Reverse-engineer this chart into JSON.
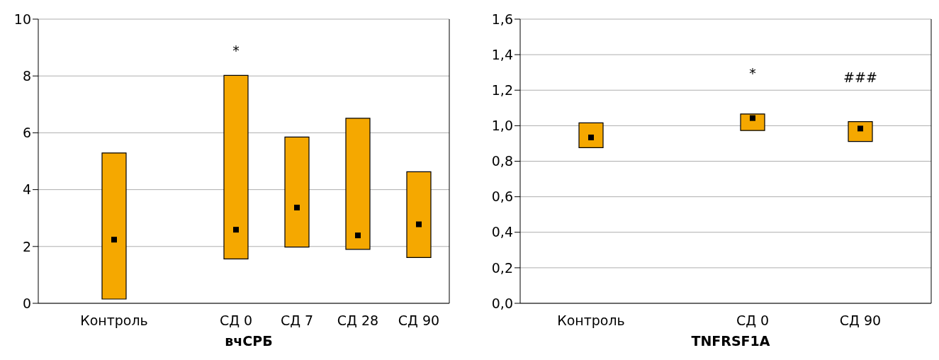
{
  "chart_data": [
    {
      "type": "bar",
      "xlabel": "вчСРБ",
      "categories": [
        "Контроль",
        null,
        "СД 0",
        "СД 7",
        "СД 28",
        "СД 90"
      ],
      "series": [
        {
          "type": "bar",
          "color": "#f5a800",
          "base": [
            0.15,
            null,
            1.56,
            1.98,
            1.9,
            1.61
          ],
          "values": [
            5.14,
            null,
            6.46,
            3.87,
            4.61,
            3.02
          ]
        },
        {
          "type": "scatter",
          "color": "#000000",
          "marker": "square",
          "values": [
            2.24,
            null,
            2.59,
            3.37,
            2.39,
            2.78
          ]
        }
      ],
      "ylim": [
        0,
        10
      ],
      "yticks": [
        0,
        2,
        4,
        6,
        8,
        10
      ],
      "grid": "y",
      "legend": false,
      "annotations": [
        "*"
      ]
    },
    {
      "type": "bar",
      "xlabel": "TNFRSF1A",
      "categories": [
        "Контроль",
        null,
        null,
        "СД 0",
        null,
        "СД 90"
      ],
      "series": [
        {
          "type": "bar",
          "color": "#f5a800",
          "base": [
            0.876,
            null,
            null,
            0.973,
            null,
            0.911
          ],
          "values": [
            0.14,
            null,
            null,
            0.093,
            null,
            0.112
          ]
        },
        {
          "type": "scatter",
          "color": "#000000",
          "marker": "square",
          "values": [
            0.934,
            null,
            null,
            1.043,
            null,
            0.984
          ]
        }
      ],
      "ylim": [
        0,
        1.6
      ],
      "yticks": [
        {
          "value": 0,
          "label": "0,0"
        },
        {
          "value": 0.2,
          "label": "0,2"
        },
        {
          "value": 0.4,
          "label": "0,4"
        },
        {
          "value": 0.6,
          "label": "0,6"
        },
        {
          "value": 0.8,
          "label": "0,8"
        },
        {
          "value": 1,
          "label": "1,0"
        },
        {
          "value": 1.2,
          "label": "1,2"
        },
        {
          "value": 1.4,
          "label": "1,4"
        },
        {
          "value": 1.6,
          "label": "1,6"
        }
      ],
      "grid": "y",
      "legend": false,
      "annotations": [
        "*",
        "###"
      ]
    }
  ]
}
